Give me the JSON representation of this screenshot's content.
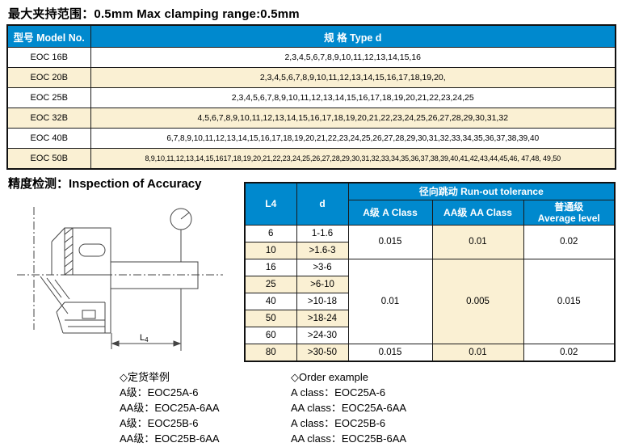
{
  "page": {
    "title": "最大夹持范围：0.5mm Max clamping range:0.5mm",
    "section2_title": "精度检测：Inspection of Accuracy"
  },
  "colors": {
    "header_blue": "#0089CE",
    "row_cream": "#FAF0D3",
    "border": "#1A1A1A"
  },
  "model_table": {
    "headers": [
      "型号 Model No.",
      "规 格 Type d"
    ],
    "rows": [
      {
        "model": "EOC 16B",
        "spec": "2,3,4,5,6,7,8,9,10,11,12,13,14,15,16"
      },
      {
        "model": "EOC 20B",
        "spec": "2,3,4,5,6,7,8,9,10,11,12,13,14,15,16,17,18,19,20,"
      },
      {
        "model": "EOC 25B",
        "spec": "2,3,4,5,6,7,8,9,10,11,12,13,14,15,16,17,18,19,20,21,22,23,24,25"
      },
      {
        "model": "EOC 32B",
        "spec": "4,5,6,7,8,9,10,11,12,13,14,15,16,17,18,19,20,21,22,23,24,25,26,27,28,29,30,31,32"
      },
      {
        "model": "EOC 40B",
        "spec": "6,7,8,9,10,11,12,13,14,15,16,17,18,19,20,21,22,23,24,25,26,27,28,29,30,31,32,33,34,35,36,37,38,39,40"
      },
      {
        "model": "EOC 50B",
        "spec": "8,9,10,11,12,13,14,15,1617,18,19,20,21,22,23,24,25,26,27,28,29,30,31,32,33,34,35,36,37,38,39,40,41,42,43,44,45,46, 47,48, 49,50"
      }
    ]
  },
  "accuracy_table": {
    "col_l4": "L4",
    "col_d": "d",
    "runout_header": "径向跳动 Run-out tolerance",
    "class_a_header": "A级  A Class",
    "class_aa_header": "AA级  AA Class",
    "class_avg_header_line1": "普通级",
    "class_avg_header_line2": "Average level",
    "rows": [
      {
        "l4": "6",
        "d": "1-1.6",
        "tol": {
          "rowspan": 2,
          "a": "0.015",
          "aa": "0.01",
          "avg": "0.02"
        }
      },
      {
        "l4": "10",
        "d": ">1.6-3"
      },
      {
        "l4": "16",
        "d": ">3-6",
        "tol": {
          "rowspan": 5,
          "a": "0.01",
          "aa": "0.005",
          "avg": "0.015"
        }
      },
      {
        "l4": "25",
        "d": ">6-10"
      },
      {
        "l4": "40",
        "d": ">10-18"
      },
      {
        "l4": "50",
        "d": ">18-24"
      },
      {
        "l4": "60",
        "d": ">24-30"
      },
      {
        "l4": "80",
        "d": ">30-50",
        "tol": {
          "rowspan": 1,
          "a": "0.015",
          "aa": "0.01",
          "avg": "0.02"
        }
      }
    ]
  },
  "diagram": {
    "dim_label": "L",
    "dim_label_sub": "4"
  },
  "order_examples": {
    "zh": {
      "title": "◇定货举例",
      "lines": [
        "A级：EOC25A-6",
        "AA级：EOC25A-6AA",
        "A级：EOC25B-6",
        "AA级：EOC25B-6AA"
      ]
    },
    "en": {
      "title": "◇Order example",
      "lines": [
        "A class：EOC25A-6",
        "AA class：EOC25A-6AA",
        "A class：EOC25B-6",
        "AA class：EOC25B-6AA"
      ]
    }
  }
}
